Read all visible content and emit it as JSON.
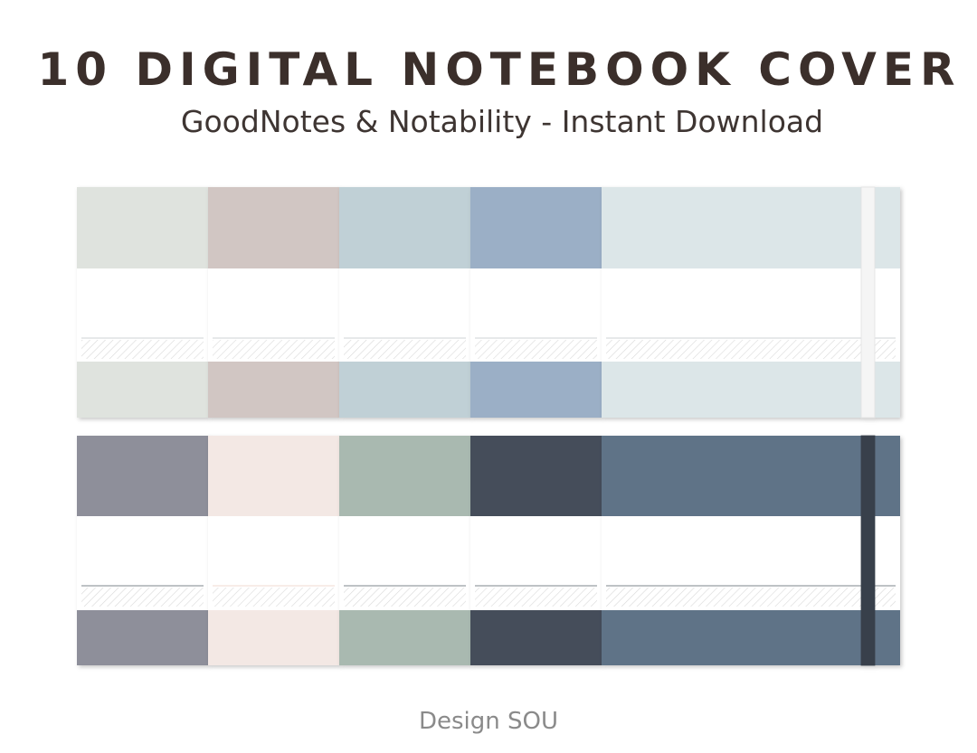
{
  "header": {
    "title": "10 DIGITAL NOTEBOOK COVER",
    "subtitle": "GoodNotes & Notability - Instant Download"
  },
  "footer": {
    "credit": "Design SOU"
  }
}
